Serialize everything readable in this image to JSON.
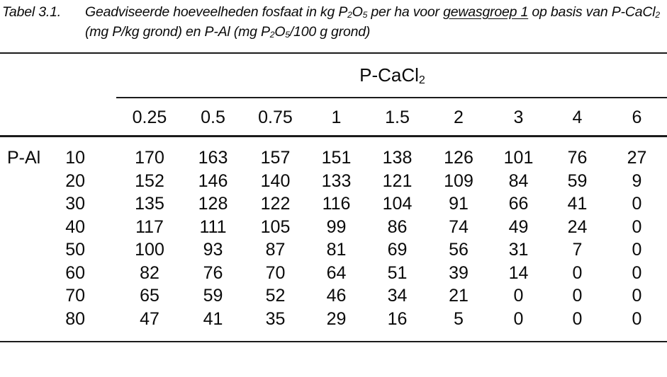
{
  "caption": {
    "label": "Tabel 3.1.",
    "line1": {
      "t1": "Geadviseerde hoeveelheden fosfaat in kg P",
      "sub1": "2",
      "t2": "O",
      "sub2": "5",
      "t3": " per ha voor ",
      "underlined": "gewasgroep 1",
      "t4": " op basis van"
    },
    "line2": {
      "t1": "P-CaCl",
      "sub1": "2",
      "t2": " (mg P/kg grond) en P-Al (mg P",
      "sub2": "2",
      "t3": "O",
      "sub3": "5",
      "t4": "/100 g grond)"
    }
  },
  "table": {
    "group_header": {
      "text": "P-CaCl",
      "sub": "2"
    },
    "row_axis_label": "P-Al",
    "column_headers": [
      "0.25",
      "0.5",
      "0.75",
      "1",
      "1.5",
      "2",
      "3",
      "4",
      "6"
    ],
    "rows": [
      {
        "label": "10",
        "values": [
          "170",
          "163",
          "157",
          "151",
          "138",
          "126",
          "101",
          "76",
          "27"
        ]
      },
      {
        "label": "20",
        "values": [
          "152",
          "146",
          "140",
          "133",
          "121",
          "109",
          "84",
          "59",
          "9"
        ]
      },
      {
        "label": "30",
        "values": [
          "135",
          "128",
          "122",
          "116",
          "104",
          "91",
          "66",
          "41",
          "0"
        ]
      },
      {
        "label": "40",
        "values": [
          "117",
          "111",
          "105",
          "99",
          "86",
          "74",
          "49",
          "24",
          "0"
        ]
      },
      {
        "label": "50",
        "values": [
          "100",
          "93",
          "87",
          "81",
          "69",
          "56",
          "31",
          "7",
          "0"
        ]
      },
      {
        "label": "60",
        "values": [
          "82",
          "76",
          "70",
          "64",
          "51",
          "39",
          "14",
          "0",
          "0"
        ]
      },
      {
        "label": "70",
        "values": [
          "65",
          "59",
          "52",
          "46",
          "34",
          "21",
          "0",
          "0",
          "0"
        ]
      },
      {
        "label": "80",
        "values": [
          "47",
          "41",
          "35",
          "29",
          "16",
          "5",
          "0",
          "0",
          "0"
        ]
      }
    ]
  },
  "colors": {
    "background": "#ffffff",
    "text": "#0a0a0a",
    "rule": "#1b1b1b"
  }
}
